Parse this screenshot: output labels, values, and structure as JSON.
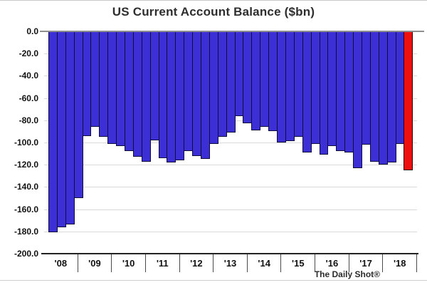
{
  "title": "US Current Account Balance ($bn)",
  "watermark": "The Daily Shot®",
  "colors": {
    "bar": "#3b2fd5",
    "bar_border": "#0e0e38",
    "highlight_bar": "#ee0f0f",
    "gridline": "#dadada",
    "zero_line": "#8f8f8f",
    "axis_line": "#222222"
  },
  "chart_data": {
    "type": "bar",
    "title": "US Current Account Balance ($bn)",
    "xlabel": "",
    "ylabel": "",
    "ylim": [
      -200,
      0
    ],
    "ytick_step": 20,
    "ytick_labels": [
      "0.0",
      "-20.0",
      "-40.0",
      "-60.0",
      "-80.0",
      "-100.0",
      "-120.0",
      "-140.0",
      "-160.0",
      "-180.0",
      "-200.0"
    ],
    "grid": "horizontal",
    "legend": "none",
    "x_unit": "quarterly bars grouped by year",
    "highlight_last_bar": true,
    "highlight_color": "#ee0f0f",
    "categories_years": [
      "'08",
      "'09",
      "'10",
      "'11",
      "'12",
      "'13",
      "'14",
      "'15",
      "'16",
      "'17",
      "'18"
    ],
    "series": [
      {
        "name": "US Current Account Balance ($bn)",
        "by_year": [
          {
            "year": "'08",
            "values": [
              -181,
              -176,
              -174,
              -150
            ]
          },
          {
            "year": "'09",
            "values": [
              -94,
              -86,
              -95,
              -101
            ]
          },
          {
            "year": "'10",
            "values": [
              -103,
              -108,
              -113,
              -117
            ]
          },
          {
            "year": "'11",
            "values": [
              -98,
              -114,
              -118,
              -116
            ]
          },
          {
            "year": "'12",
            "values": [
              -108,
              -112,
              -115,
              -101
            ]
          },
          {
            "year": "'13",
            "values": [
              -95,
              -91,
              -76,
              -83
            ]
          },
          {
            "year": "'14",
            "values": [
              -89,
              -86,
              -90,
              -100
            ]
          },
          {
            "year": "'15",
            "values": [
              -99,
              -95,
              -109,
              -101
            ]
          },
          {
            "year": "'16",
            "values": [
              -111,
              -103,
              -108,
              -109
            ]
          },
          {
            "year": "'17",
            "values": [
              -123,
              -102,
              -117,
              -120
            ]
          },
          {
            "year": "'18",
            "values": [
              -118,
              -101,
              -125
            ]
          }
        ]
      }
    ]
  }
}
